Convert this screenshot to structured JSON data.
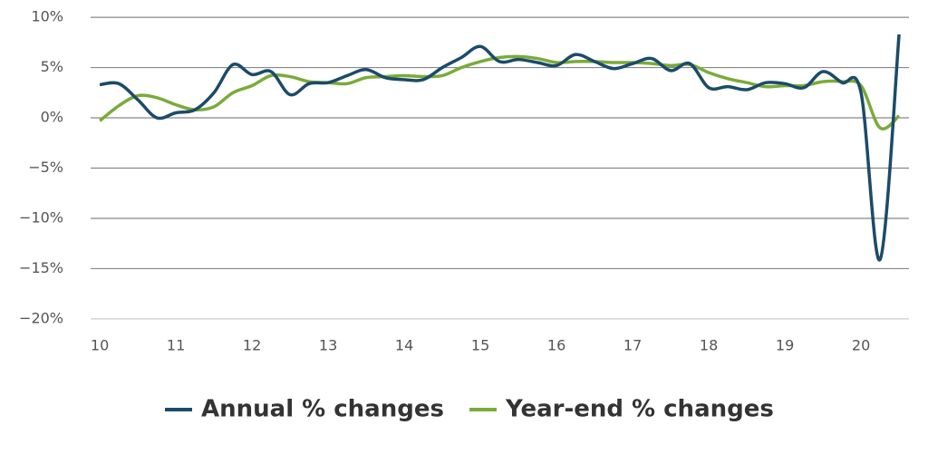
{
  "chart_data": {
    "type": "line",
    "x": [
      10,
      10.25,
      10.5,
      10.75,
      11,
      11.25,
      11.5,
      11.75,
      12,
      12.25,
      12.5,
      12.75,
      13,
      13.25,
      13.5,
      13.75,
      14,
      14.25,
      14.5,
      14.75,
      15,
      15.25,
      15.5,
      15.75,
      16,
      16.25,
      16.5,
      16.75,
      17,
      17.25,
      17.5,
      17.75,
      18,
      18.25,
      18.5,
      18.75,
      19,
      19.25,
      19.5,
      19.75,
      20,
      20.25,
      20.5
    ],
    "series": [
      {
        "name": "Annual % changes",
        "color": "#1b4b69",
        "values": [
          3.3,
          3.4,
          1.8,
          0,
          0.5,
          0.8,
          2.5,
          5.3,
          4.3,
          4.6,
          2.3,
          3.4,
          3.5,
          4.2,
          4.8,
          4.0,
          3.8,
          3.8,
          5.0,
          6.0,
          7.1,
          5.6,
          5.8,
          5.5,
          5.2,
          6.3,
          5.6,
          4.9,
          5.4,
          5.9,
          4.7,
          5.4,
          3.0,
          3.1,
          2.8,
          3.5,
          3.4,
          3.0,
          4.6,
          3.5,
          2.5,
          -14.1,
          8.3
        ]
      },
      {
        "name": "Year-end % changes",
        "color": "#7aab3a",
        "values": [
          -0.3,
          1.2,
          2.2,
          2.0,
          1.3,
          0.8,
          1.1,
          2.5,
          3.2,
          4.2,
          4.1,
          3.6,
          3.5,
          3.4,
          4.0,
          4.1,
          4.2,
          4.1,
          4.2,
          5.0,
          5.6,
          6.0,
          6.1,
          5.9,
          5.5,
          5.6,
          5.6,
          5.5,
          5.5,
          5.4,
          5.2,
          5.3,
          4.5,
          3.9,
          3.5,
          3.1,
          3.2,
          3.2,
          3.6,
          3.6,
          3.2,
          -1.0,
          0.2
        ]
      }
    ],
    "xlim": [
      9.88,
      20.63
    ],
    "xticks": [
      10,
      11,
      12,
      13,
      14,
      15,
      16,
      17,
      18,
      19,
      20
    ],
    "ylim": [
      -21,
      11
    ],
    "yticks": [
      {
        "value": -20,
        "label": "−20%"
      },
      {
        "value": -15,
        "label": "−15%"
      },
      {
        "value": -10,
        "label": "−10%"
      },
      {
        "value": -5,
        "label": "−5%"
      },
      {
        "value": 0,
        "label": "0%"
      },
      {
        "value": 5,
        "label": "5%"
      },
      {
        "value": 10,
        "label": "10%"
      }
    ],
    "grid": true
  }
}
